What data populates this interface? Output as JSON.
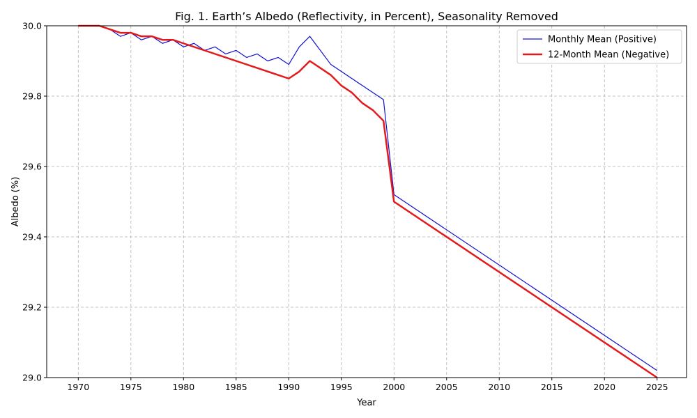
{
  "chart_data": {
    "type": "line",
    "title": "Fig. 1. Earth’s Albedo (Reflectivity, in Percent), Seasonality Removed",
    "xlabel": "Year",
    "ylabel": "Albedo (%)",
    "xlim": [
      1967,
      2027.8
    ],
    "ylim": [
      29.0,
      30.0
    ],
    "xticks": [
      1970,
      1975,
      1980,
      1985,
      1990,
      1995,
      2000,
      2005,
      2010,
      2015,
      2020,
      2025
    ],
    "yticks": [
      29.0,
      29.2,
      29.4,
      29.6,
      29.8,
      30.0
    ],
    "ytick_labels": [
      "29.0",
      "29.2",
      "29.4",
      "29.6",
      "29.8",
      "30.0"
    ],
    "grid": true,
    "legend_position": "top-right",
    "series": [
      {
        "name": "Monthly Mean (Positive)",
        "color": "#1010d0",
        "line_style": "solid-thin",
        "x": [
          1970,
          1971,
          1972,
          1973,
          1974,
          1975,
          1976,
          1977,
          1978,
          1979,
          1980,
          1981,
          1982,
          1983,
          1984,
          1985,
          1986,
          1987,
          1988,
          1989,
          1990,
          1991,
          1992,
          1994,
          1999,
          2000,
          2025
        ],
        "y": [
          30.0,
          30.0,
          30.0,
          29.99,
          29.97,
          29.98,
          29.96,
          29.97,
          29.95,
          29.96,
          29.94,
          29.95,
          29.93,
          29.94,
          29.92,
          29.93,
          29.91,
          29.92,
          29.9,
          29.91,
          29.89,
          29.94,
          29.97,
          29.89,
          29.79,
          29.52,
          29.02
        ]
      },
      {
        "name": "12-Month Mean (Negative)",
        "color": "#e31a1c",
        "line_style": "solid-thick",
        "x": [
          1970,
          1972,
          1973,
          1974,
          1975,
          1976,
          1977,
          1978,
          1979,
          1980,
          1990,
          1991,
          1992,
          1994,
          1995,
          1996,
          1997,
          1998,
          1999,
          2000,
          2025
        ],
        "y": [
          30.0,
          30.0,
          29.99,
          29.98,
          29.98,
          29.97,
          29.97,
          29.96,
          29.96,
          29.95,
          29.85,
          29.87,
          29.9,
          29.86,
          29.83,
          29.81,
          29.78,
          29.76,
          29.73,
          29.5,
          29.0
        ]
      }
    ]
  }
}
